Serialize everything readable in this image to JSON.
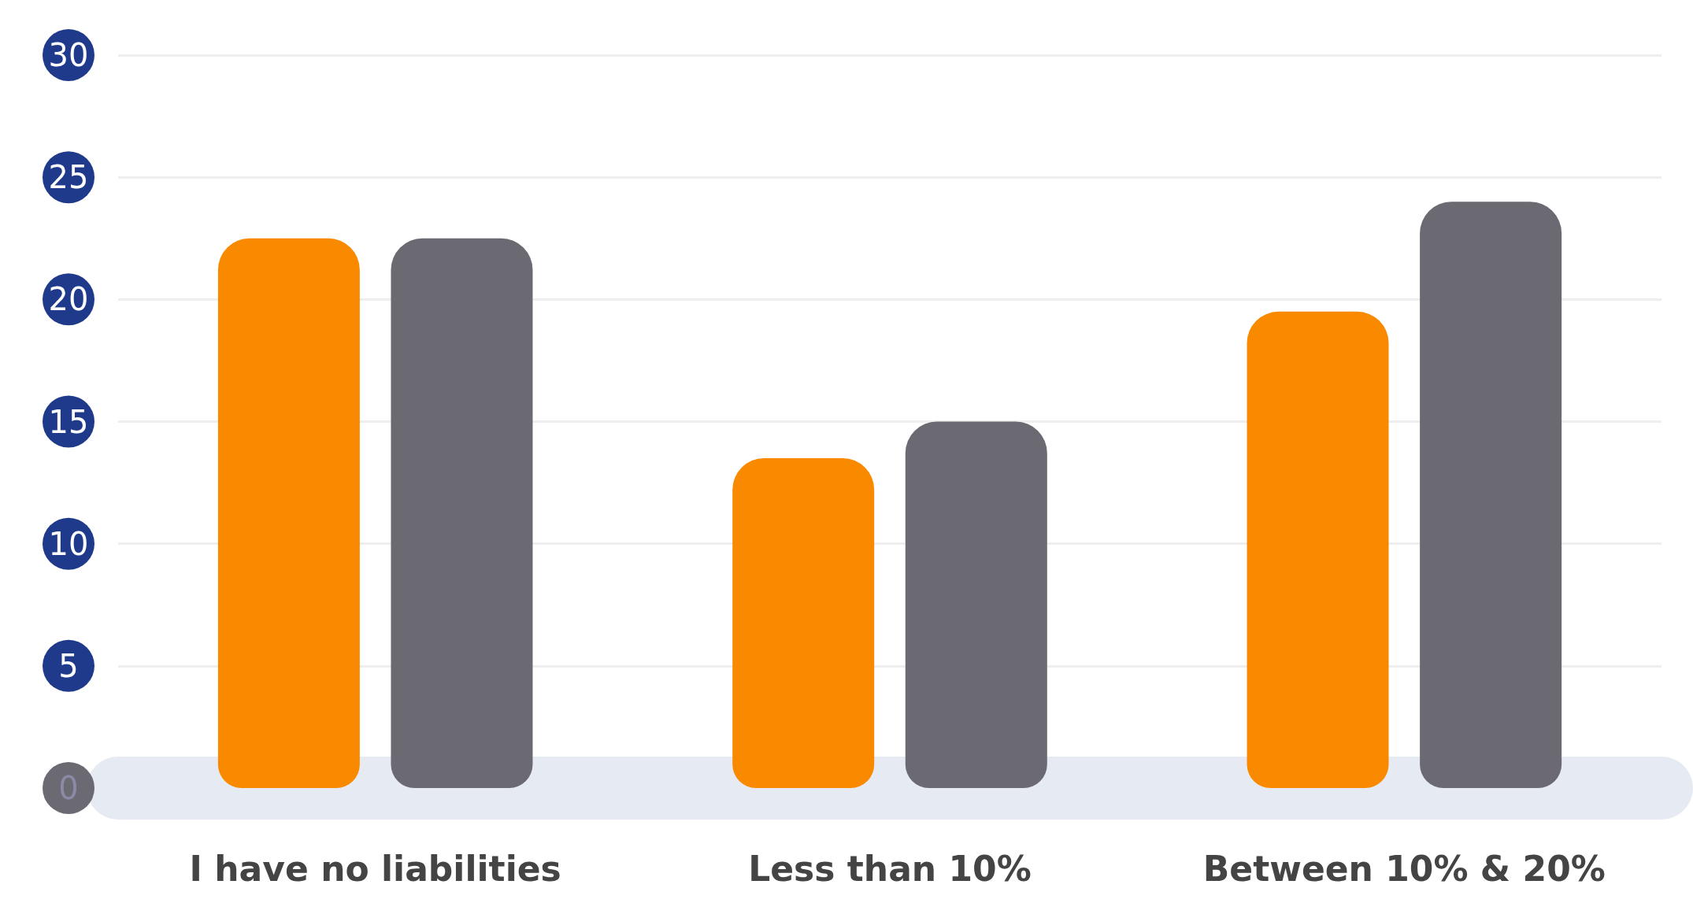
{
  "chart_data": {
    "type": "bar",
    "categories": [
      "I have no liabilities",
      "Less than 10%",
      "Between 10% & 20%"
    ],
    "series": [
      {
        "color": "#f98a00",
        "values": [
          22.5,
          13.5,
          19.5
        ]
      },
      {
        "color": "#6b6a72",
        "values": [
          22.5,
          15,
          24
        ]
      }
    ],
    "ylim": [
      0,
      30
    ],
    "yticks": [
      0,
      5,
      10,
      15,
      20,
      25,
      30
    ],
    "grid": "y"
  }
}
